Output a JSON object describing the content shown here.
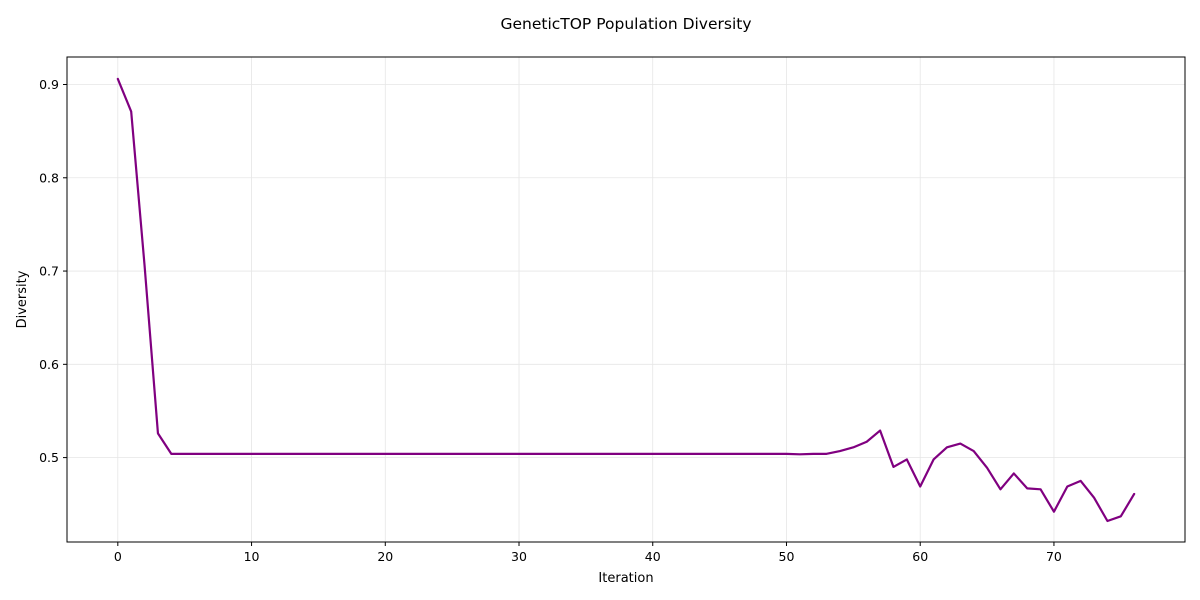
{
  "chart_data": {
    "type": "line",
    "title": "GeneticTOP Population Diversity",
    "xlabel": "Iteration",
    "ylabel": "Diversity",
    "xlim": [
      -3.8,
      79.8
    ],
    "ylim": [
      0.4095,
      0.9295
    ],
    "xticks": [
      0,
      10,
      20,
      30,
      40,
      50,
      60,
      70
    ],
    "yticks": [
      0.5,
      0.6,
      0.7,
      0.8,
      0.9
    ],
    "grid": true,
    "line_color": "#800080",
    "series": [
      {
        "x": [
          0,
          1,
          2,
          3,
          4,
          5,
          6,
          7,
          8,
          9,
          10,
          11,
          12,
          13,
          14,
          15,
          16,
          17,
          18,
          19,
          20,
          21,
          22,
          23,
          24,
          25,
          26,
          27,
          28,
          29,
          30,
          31,
          32,
          33,
          34,
          35,
          36,
          37,
          38,
          39,
          40,
          41,
          42,
          43,
          44,
          45,
          46,
          47,
          48,
          49,
          50,
          51,
          52,
          53,
          54,
          55,
          56,
          57,
          58,
          59,
          60,
          61,
          62,
          63,
          64,
          65,
          66,
          67,
          68,
          69,
          70,
          71,
          72,
          73,
          74,
          75,
          76
        ],
        "values": [
          0.906,
          0.871,
          0.706,
          0.526,
          0.504,
          0.504,
          0.504,
          0.504,
          0.504,
          0.504,
          0.504,
          0.504,
          0.504,
          0.504,
          0.504,
          0.504,
          0.504,
          0.504,
          0.504,
          0.504,
          0.504,
          0.504,
          0.504,
          0.504,
          0.504,
          0.504,
          0.504,
          0.504,
          0.504,
          0.504,
          0.504,
          0.504,
          0.504,
          0.504,
          0.504,
          0.504,
          0.504,
          0.504,
          0.504,
          0.504,
          0.504,
          0.504,
          0.504,
          0.504,
          0.504,
          0.504,
          0.504,
          0.504,
          0.504,
          0.504,
          0.504,
          0.5035,
          0.504,
          0.504,
          0.507,
          0.511,
          0.517,
          0.529,
          0.49,
          0.498,
          0.469,
          0.498,
          0.511,
          0.515,
          0.507,
          0.489,
          0.466,
          0.483,
          0.467,
          0.466,
          0.442,
          0.469,
          0.475,
          0.457,
          0.432,
          0.437,
          0.461
        ]
      }
    ]
  }
}
